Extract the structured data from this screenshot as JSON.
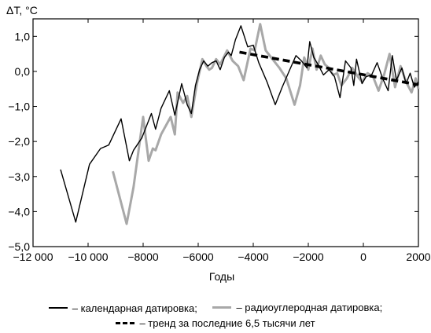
{
  "chart_data": {
    "type": "line",
    "ylabel": "ΔT, °C",
    "xlabel": "Годы",
    "xlim": [
      -12000,
      2000
    ],
    "ylim": [
      -5.0,
      1.5
    ],
    "x_ticks": [
      -12000,
      -10000,
      -8000,
      -6000,
      -4000,
      -2000,
      0,
      2000
    ],
    "x_tick_labels": [
      "−12 000",
      "−10 000",
      "−8000",
      "−6000",
      "−4000",
      "−2000",
      "0",
      "2000"
    ],
    "y_ticks": [
      1.0,
      0.0,
      -1.0,
      -2.0,
      -3.0,
      -4.0,
      -5.0
    ],
    "y_tick_labels": [
      "1,0",
      "0,0",
      "−1,0",
      "−2,0",
      "−3,0",
      "−4,0",
      "−5,0"
    ],
    "legend_position": "bottom",
    "series": [
      {
        "name": "– календарная датировка;",
        "color": "#000000",
        "style": "solid-thin",
        "x": [
          -11000,
          -10450,
          -9950,
          -9550,
          -9250,
          -8800,
          -8500,
          -8350,
          -8050,
          -7700,
          -7550,
          -7350,
          -7050,
          -6850,
          -6600,
          -6400,
          -6250,
          -6100,
          -5950,
          -5800,
          -5650,
          -5500,
          -5350,
          -5200,
          -5050,
          -4900,
          -4800,
          -4650,
          -4450,
          -4200,
          -4000,
          -3800,
          -3500,
          -3200,
          -2950,
          -2700,
          -2450,
          -2250,
          -2050,
          -1950,
          -1800,
          -1650,
          -1450,
          -1250,
          -1050,
          -850,
          -650,
          -450,
          -350,
          -250,
          -150,
          -50,
          100,
          300,
          500,
          700,
          900,
          1050,
          1200,
          1400,
          1550,
          1700,
          1850,
          2000
        ],
        "y": [
          -2.8,
          -4.3,
          -2.65,
          -2.2,
          -2.1,
          -1.35,
          -2.55,
          -2.25,
          -1.9,
          -1.2,
          -1.65,
          -1.05,
          -0.55,
          -1.25,
          -0.35,
          -0.95,
          -1.2,
          -0.4,
          0.05,
          0.3,
          0.15,
          0.25,
          0.3,
          0.05,
          0.4,
          0.55,
          0.45,
          0.9,
          1.3,
          0.7,
          0.75,
          0.25,
          -0.3,
          -0.95,
          -0.45,
          0.0,
          0.45,
          0.3,
          0.1,
          0.85,
          0.4,
          0.2,
          -0.1,
          0.05,
          -0.15,
          -0.75,
          0.3,
          0.1,
          -0.4,
          0.35,
          0.0,
          -0.35,
          -0.15,
          -0.1,
          0.25,
          -0.2,
          -0.55,
          0.45,
          -0.25,
          0.1,
          -0.35,
          -0.05,
          -0.45,
          -0.3
        ]
      },
      {
        "name": "– радиоуглеродная датировка;",
        "color": "#a8a8a8",
        "style": "solid-thick",
        "x": [
          -9100,
          -8600,
          -8350,
          -8000,
          -7800,
          -7650,
          -7550,
          -7350,
          -7000,
          -6850,
          -6750,
          -6550,
          -6400,
          -6250,
          -6050,
          -5850,
          -5700,
          -5600,
          -5500,
          -5350,
          -5200,
          -4950,
          -4750,
          -4550,
          -4350,
          -4100,
          -3950,
          -3750,
          -3550,
          -3300,
          -3050,
          -2800,
          -2500,
          -2300,
          -2150,
          -2000,
          -1850,
          -1700,
          -1550,
          -1400,
          -1250,
          -1100,
          -950,
          -800,
          -600,
          -400,
          -200,
          -50,
          150,
          350,
          550,
          750,
          950,
          1150,
          1350,
          1550,
          1750,
          1900,
          2000
        ],
        "y": [
          -2.85,
          -4.35,
          -3.3,
          -1.3,
          -2.55,
          -2.2,
          -2.25,
          -1.8,
          -1.3,
          -1.8,
          -0.6,
          -0.9,
          -0.7,
          -1.3,
          -0.35,
          0.35,
          0.15,
          0.05,
          0.1,
          0.35,
          0.2,
          0.6,
          0.3,
          0.15,
          -0.25,
          0.65,
          0.6,
          1.35,
          0.6,
          0.35,
          0.1,
          -0.2,
          -0.95,
          -0.4,
          0.4,
          0.05,
          0.65,
          0.05,
          0.45,
          0.2,
          0.1,
          -0.1,
          -0.05,
          -0.4,
          -0.2,
          0.1,
          -0.15,
          -0.3,
          -0.05,
          -0.15,
          -0.55,
          -0.1,
          0.5,
          -0.45,
          0.15,
          -0.3,
          -0.6,
          -0.2,
          -0.5
        ]
      },
      {
        "name": "– тренд за последние 6,5 тысячи лет",
        "color": "#000000",
        "style": "dashed-thick",
        "x": [
          -4500,
          2000
        ],
        "y": [
          0.55,
          -0.38
        ]
      }
    ]
  }
}
